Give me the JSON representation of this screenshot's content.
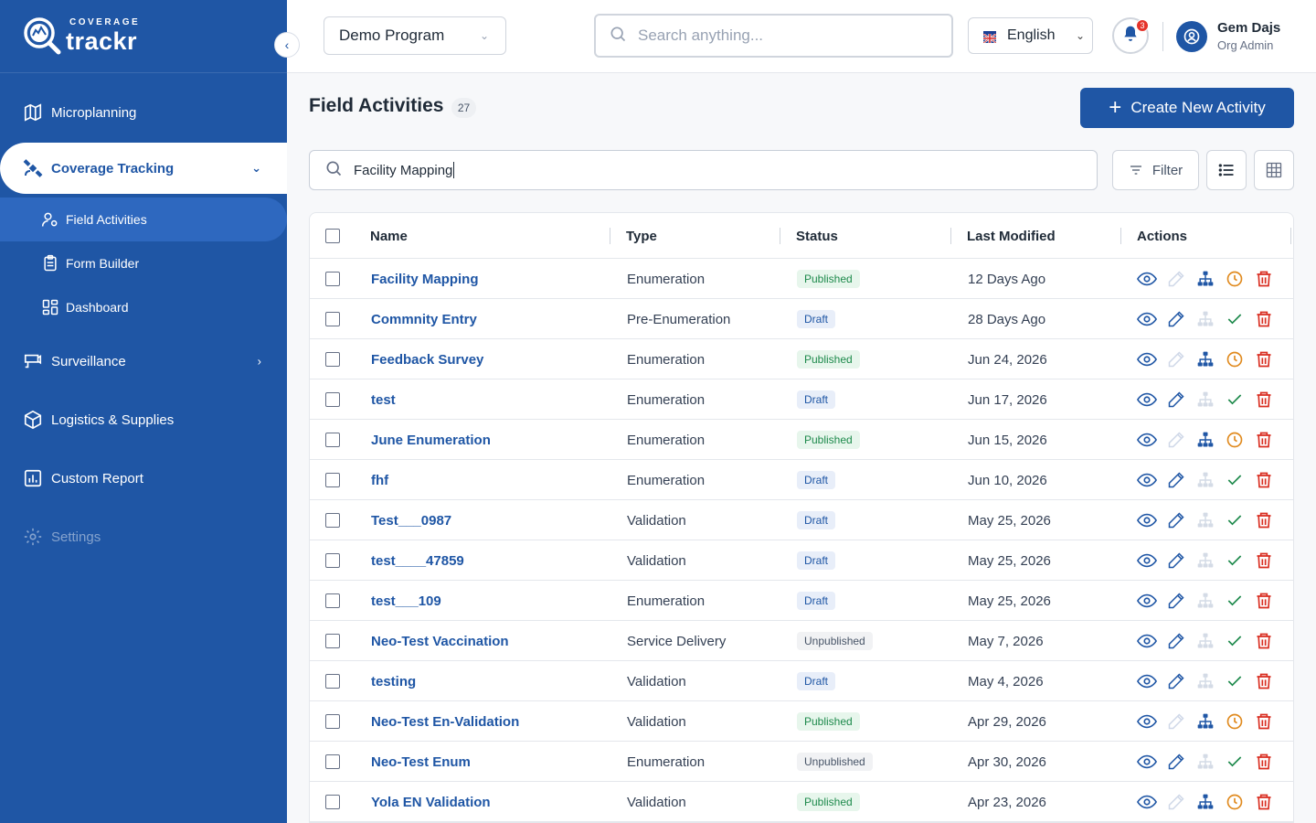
{
  "app": {
    "logo_small": "COVERAGE",
    "logo_big": "trackr"
  },
  "sidebar": {
    "items": [
      {
        "label": "Microplanning",
        "icon": "map-icon"
      },
      {
        "label": "Coverage Tracking",
        "icon": "satellite-icon"
      },
      {
        "label": "Surveillance",
        "icon": "surveillance-icon"
      },
      {
        "label": "Logistics & Supplies",
        "icon": "package-icon"
      },
      {
        "label": "Custom Report",
        "icon": "report-icon"
      },
      {
        "label": "Settings",
        "icon": "gear-icon"
      }
    ],
    "sub_items": [
      {
        "label": "Field Activities",
        "icon": "user-settings-icon"
      },
      {
        "label": "Form Builder",
        "icon": "clipboard-icon"
      },
      {
        "label": "Dashboard",
        "icon": "dashboard-icon"
      }
    ]
  },
  "topbar": {
    "program": "Demo Program",
    "search_placeholder": "Search anything...",
    "language": "English",
    "notification_count": "3",
    "user_name": "Gem Dajs",
    "user_role": "Org Admin"
  },
  "main": {
    "title": "Field Activities",
    "count": "27",
    "create_label": "Create New Activity",
    "search_value": "Facility Mapping",
    "filter_label": "Filter"
  },
  "table": {
    "columns": [
      "Name",
      "Type",
      "Status",
      "Last Modified",
      "Actions"
    ],
    "rows": [
      {
        "name": "Facility Mapping",
        "type": "Enumeration",
        "status": "Published",
        "modified": "12 Days Ago"
      },
      {
        "name": "Commnity Entry",
        "type": "Pre-Enumeration",
        "status": "Draft",
        "modified": "28 Days Ago"
      },
      {
        "name": "Feedback Survey",
        "type": "Enumeration",
        "status": "Published",
        "modified": "Jun 24, 2026"
      },
      {
        "name": "test",
        "type": "Enumeration",
        "status": "Draft",
        "modified": "Jun 17, 2026"
      },
      {
        "name": "June Enumeration",
        "type": "Enumeration",
        "status": "Published",
        "modified": "Jun 15, 2026"
      },
      {
        "name": "fhf",
        "type": "Enumeration",
        "status": "Draft",
        "modified": "Jun 10, 2026"
      },
      {
        "name": "Test___0987",
        "type": "Validation",
        "status": "Draft",
        "modified": "May 25, 2026"
      },
      {
        "name": "test____47859",
        "type": "Validation",
        "status": "Draft",
        "modified": "May 25, 2026"
      },
      {
        "name": "test___109",
        "type": "Enumeration",
        "status": "Draft",
        "modified": "May 25, 2026"
      },
      {
        "name": "Neo-Test Vaccination",
        "type": "Service Delivery",
        "status": "Unpublished",
        "modified": "May 7, 2026"
      },
      {
        "name": "testing",
        "type": "Validation",
        "status": "Draft",
        "modified": "May 4, 2026"
      },
      {
        "name": "Neo-Test En-Validation",
        "type": "Validation",
        "status": "Published",
        "modified": "Apr 29, 2026"
      },
      {
        "name": "Neo-Test Enum",
        "type": "Enumeration",
        "status": "Unpublished",
        "modified": "Apr 30, 2026"
      },
      {
        "name": "Yola EN Validation",
        "type": "Validation",
        "status": "Published",
        "modified": "Apr 23, 2026"
      }
    ]
  },
  "colors": {
    "brand": "#1f56a5",
    "published": "#1e8a4c",
    "orange": "#e08a1e",
    "danger": "#d92d20"
  }
}
